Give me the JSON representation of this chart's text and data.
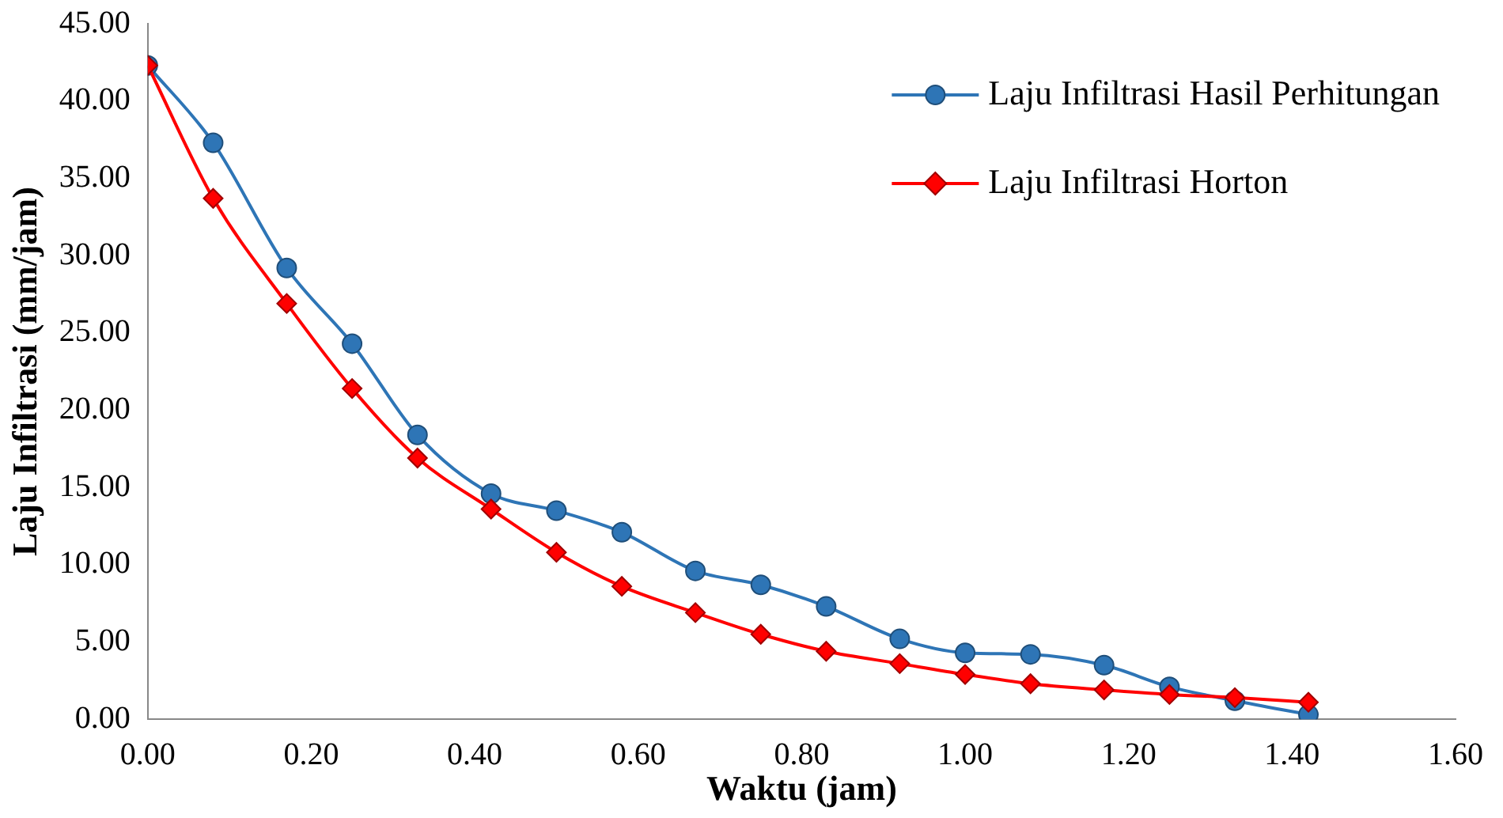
{
  "chart_data": {
    "type": "line",
    "xlabel": "Waktu (jam)",
    "ylabel": "Laju Infiltrasi (mm/jam)",
    "x": [
      0,
      0.08,
      0.17,
      0.25,
      0.33,
      0.42,
      0.5,
      0.58,
      0.67,
      0.75,
      0.83,
      0.92,
      1.0,
      1.08,
      1.17,
      1.25,
      1.33,
      1.42
    ],
    "series": [
      {
        "name": "Laju Infiltrasi Hasil Perhitungan",
        "color": "#2e75b6",
        "marker": "circle",
        "values": [
          42.3,
          37.3,
          29.2,
          24.3,
          18.4,
          14.6,
          13.5,
          12.1,
          9.6,
          8.7,
          7.3,
          5.2,
          4.3,
          4.2,
          3.5,
          2.1,
          1.2,
          0.3
        ]
      },
      {
        "name": "Laju Infiltrasi Horton",
        "color": "#ff0000",
        "marker": "diamond",
        "values": [
          42.3,
          33.7,
          26.9,
          21.4,
          16.9,
          13.6,
          10.8,
          8.6,
          6.9,
          5.5,
          4.4,
          3.6,
          2.9,
          2.3,
          1.9,
          1.6,
          1.4,
          1.1
        ]
      }
    ],
    "xlim": [
      0,
      1.6
    ],
    "xticks": [
      {
        "value": 0,
        "label": "0.00"
      },
      {
        "value": 0.2,
        "label": "0.20"
      },
      {
        "value": 0.4,
        "label": "0.40"
      },
      {
        "value": 0.6,
        "label": "0.60"
      },
      {
        "value": 0.8,
        "label": "0.80"
      },
      {
        "value": 1,
        "label": "1.00"
      },
      {
        "value": 1.2,
        "label": "1.20"
      },
      {
        "value": 1.4,
        "label": "1.40"
      },
      {
        "value": 1.6,
        "label": "1.60"
      }
    ],
    "ylim": [
      0,
      45
    ],
    "yticks": [
      {
        "value": 0,
        "label": "0.00"
      },
      {
        "value": 5,
        "label": "5.00"
      },
      {
        "value": 10,
        "label": "10.00"
      },
      {
        "value": 15,
        "label": "15.00"
      },
      {
        "value": 20,
        "label": "20.00"
      },
      {
        "value": 25,
        "label": "25.00"
      },
      {
        "value": 30,
        "label": "30.00"
      },
      {
        "value": 35,
        "label": "35.00"
      },
      {
        "value": 40,
        "label": "40.00"
      },
      {
        "value": 45,
        "label": "45.00"
      }
    ],
    "grid": false,
    "legend": "top right",
    "line_style": "solid"
  }
}
